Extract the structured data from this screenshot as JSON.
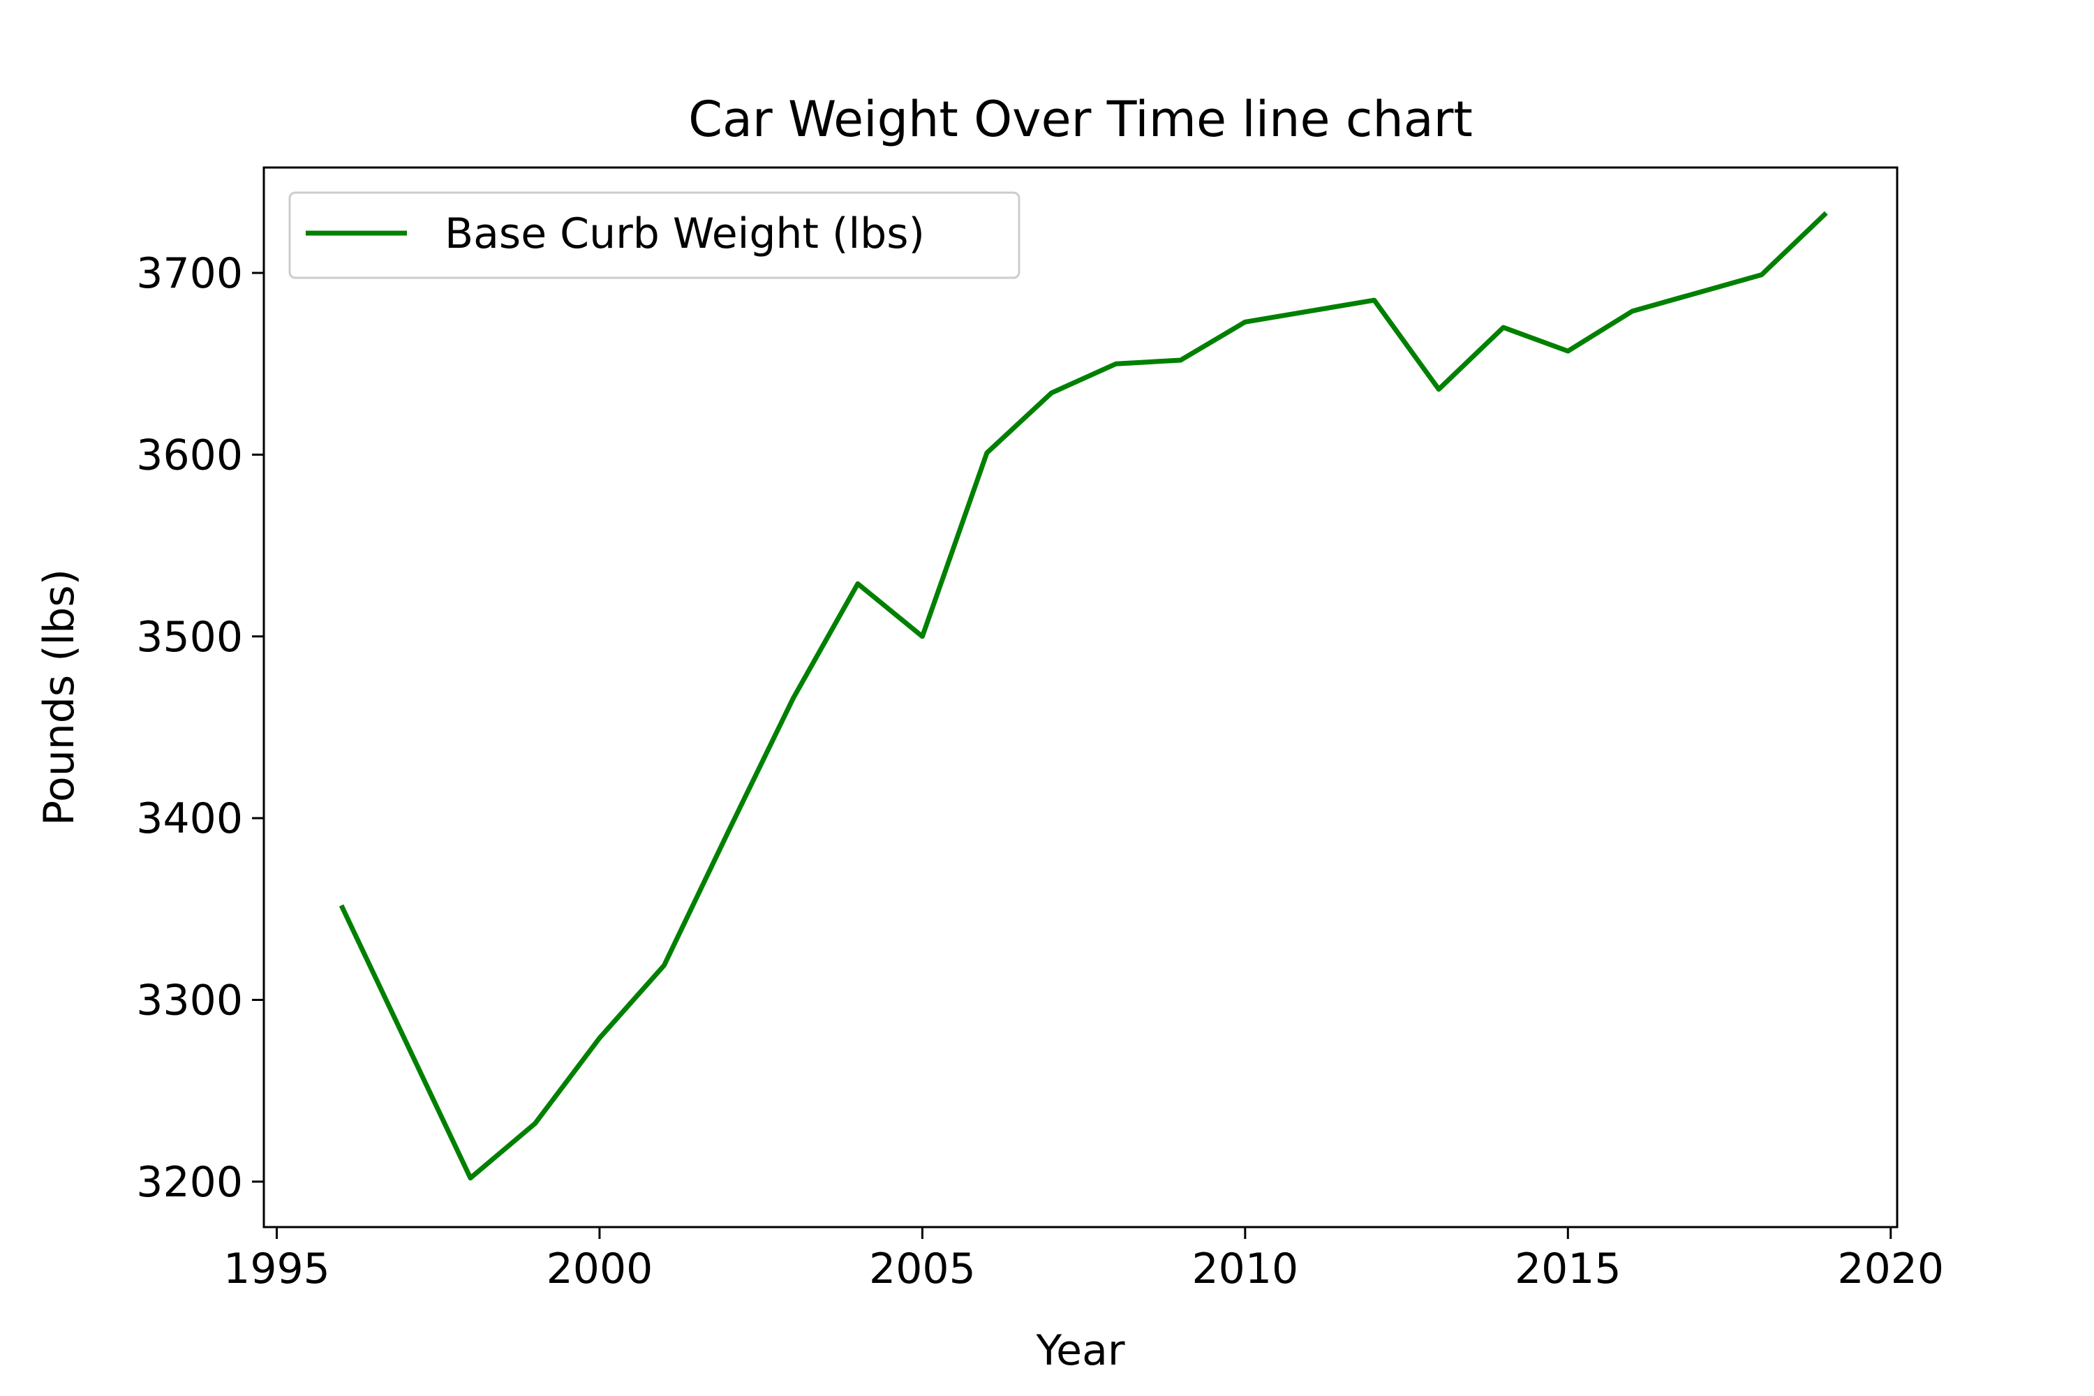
{
  "chart_data": {
    "type": "line",
    "title": "Car Weight Over Time line chart",
    "xlabel": "Year",
    "ylabel": "Pounds (lbs)",
    "xlim": [
      1994.8,
      2020.1
    ],
    "ylim": [
      3175,
      3758
    ],
    "xticks": [
      1995,
      2000,
      2005,
      2010,
      2015,
      2020
    ],
    "yticks": [
      3200,
      3300,
      3400,
      3500,
      3600,
      3700
    ],
    "xtick_labels": [
      "1995",
      "2000",
      "2005",
      "2010",
      "2015",
      "2020"
    ],
    "ytick_labels": [
      "3200",
      "3300",
      "3400",
      "3500",
      "3600",
      "3700"
    ],
    "grid": false,
    "legend": "upper-left",
    "series": [
      {
        "name": "Base Curb Weight (lbs)",
        "color": "#008000",
        "x": [
          1996,
          1997,
          1998,
          1999,
          2000,
          2001,
          2002,
          2003,
          2004,
          2005,
          2006,
          2007,
          2008,
          2009,
          2010,
          2011,
          2012,
          2013,
          2014,
          2015,
          2016,
          2017,
          2018,
          2019
        ],
        "y": [
          3352,
          3277,
          3202,
          3232,
          3279,
          3319,
          3393,
          3466,
          3529,
          3500,
          3601,
          3634,
          3650,
          3652,
          3673,
          3679,
          3685,
          3636,
          3670,
          3657,
          3679,
          3689,
          3699,
          3733
        ]
      }
    ]
  }
}
